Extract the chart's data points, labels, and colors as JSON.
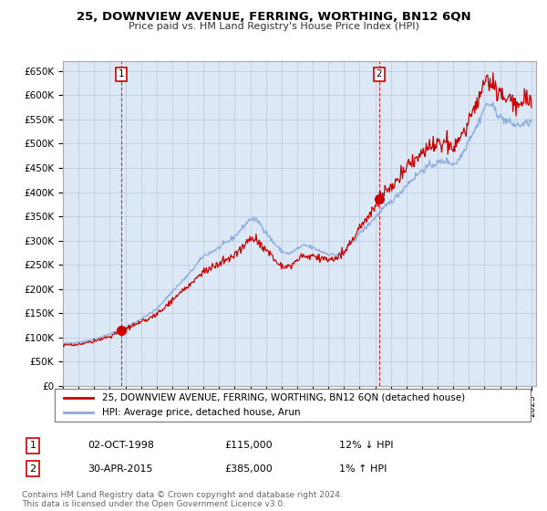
{
  "title": "25, DOWNVIEW AVENUE, FERRING, WORTHING, BN12 6QN",
  "subtitle": "Price paid vs. HM Land Registry's House Price Index (HPI)",
  "ylabel_ticks": [
    "£0",
    "£50K",
    "£100K",
    "£150K",
    "£200K",
    "£250K",
    "£300K",
    "£350K",
    "£400K",
    "£450K",
    "£500K",
    "£550K",
    "£600K",
    "£650K"
  ],
  "ytick_values": [
    0,
    50000,
    100000,
    150000,
    200000,
    250000,
    300000,
    350000,
    400000,
    450000,
    500000,
    550000,
    600000,
    650000
  ],
  "ylim": [
    0,
    670000
  ],
  "sale1": {
    "date_num": 1998.75,
    "price": 115000,
    "label": "1",
    "note": "02-OCT-1998",
    "amount": "£115,000",
    "hpi_rel": "12% ↓ HPI"
  },
  "sale2": {
    "date_num": 2015.25,
    "price": 385000,
    "label": "2",
    "note": "30-APR-2015",
    "amount": "£385,000",
    "hpi_rel": "1% ↑ HPI"
  },
  "line_color_house": "#cc0000",
  "line_color_hpi": "#88aadd",
  "legend_house": "25, DOWNVIEW AVENUE, FERRING, WORTHING, BN12 6QN (detached house)",
  "legend_hpi": "HPI: Average price, detached house, Arun",
  "footer": "Contains HM Land Registry data © Crown copyright and database right 2024.\nThis data is licensed under the Open Government Licence v3.0.",
  "background_color": "#ffffff",
  "plot_bg_color": "#dce8f5",
  "grid_color": "#aabbcc",
  "annotation_box_color": "#cc0000"
}
